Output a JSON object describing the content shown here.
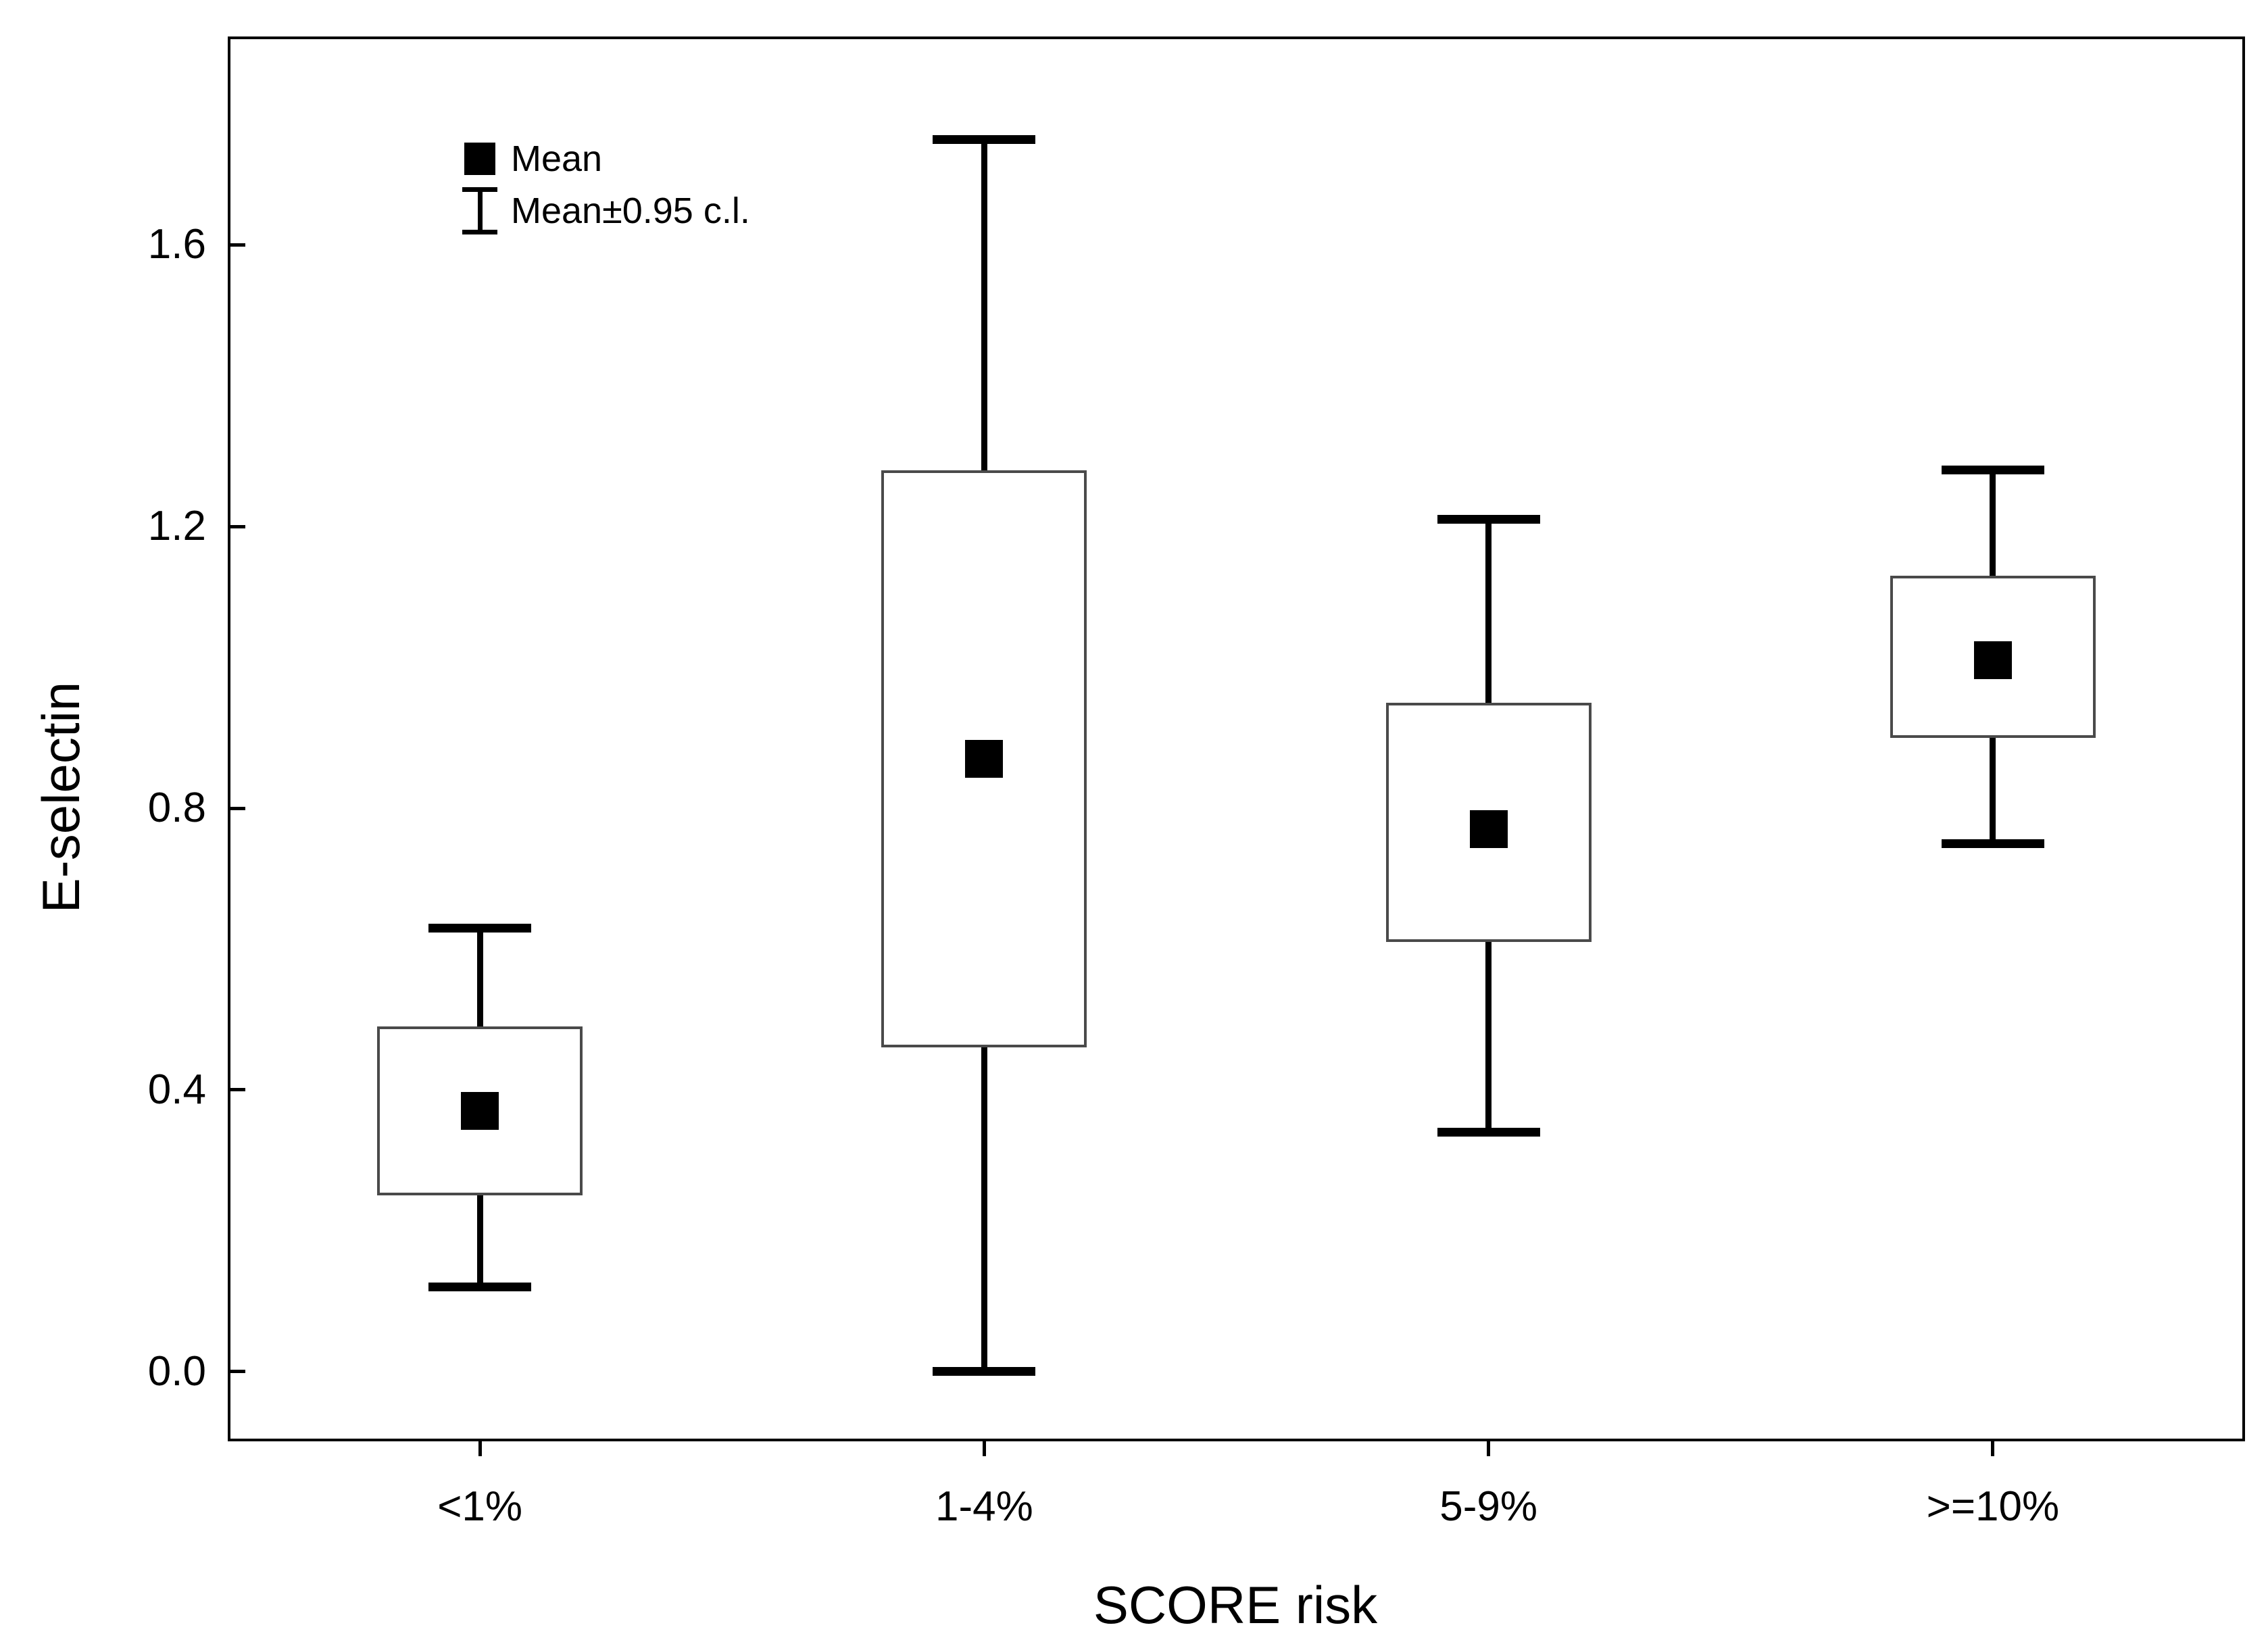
{
  "chart_data": {
    "type": "box",
    "title": "",
    "xlabel": "SCORE risk",
    "ylabel": "E-selectin",
    "categories": [
      "<1%",
      "1-4%",
      "5-9%",
      ">=10%"
    ],
    "series": [
      {
        "category": "<1%",
        "mean": 0.37,
        "box_low": 0.25,
        "box_high": 0.49,
        "whisker_low": 0.12,
        "whisker_high": 0.63
      },
      {
        "category": "1-4%",
        "mean": 0.87,
        "box_low": 0.46,
        "box_high": 1.28,
        "whisker_low": 0.0,
        "whisker_high": 1.75
      },
      {
        "category": "5-9%",
        "mean": 0.77,
        "box_low": 0.61,
        "box_high": 0.95,
        "whisker_low": 0.34,
        "whisker_high": 1.21
      },
      {
        "category": ">=10%",
        "mean": 1.01,
        "box_low": 0.9,
        "box_high": 1.13,
        "whisker_low": 0.75,
        "whisker_high": 1.28
      }
    ],
    "box_meaning": "Mean±SE box with Mean±0.95 confidence interval whiskers",
    "yticks": [
      {
        "value": 0.0,
        "label": "0.0"
      },
      {
        "value": 0.4,
        "label": "0.4"
      },
      {
        "value": 0.8,
        "label": "0.8"
      },
      {
        "value": 1.2,
        "label": "1.2"
      },
      {
        "value": 1.6,
        "label": "1.6"
      }
    ],
    "ylim": [
      -0.099,
      1.896
    ],
    "grid": false,
    "legend_position": "top-left-inside",
    "legend": [
      {
        "label": "Mean",
        "marker": "filled-square"
      },
      {
        "label": "Mean±0.95 c.l.",
        "marker": "error-bar"
      }
    ],
    "colors": {
      "foreground": "#000000",
      "box_border": "#4a4a4a",
      "box_fill": "#ffffff",
      "background": "#ffffff"
    }
  }
}
